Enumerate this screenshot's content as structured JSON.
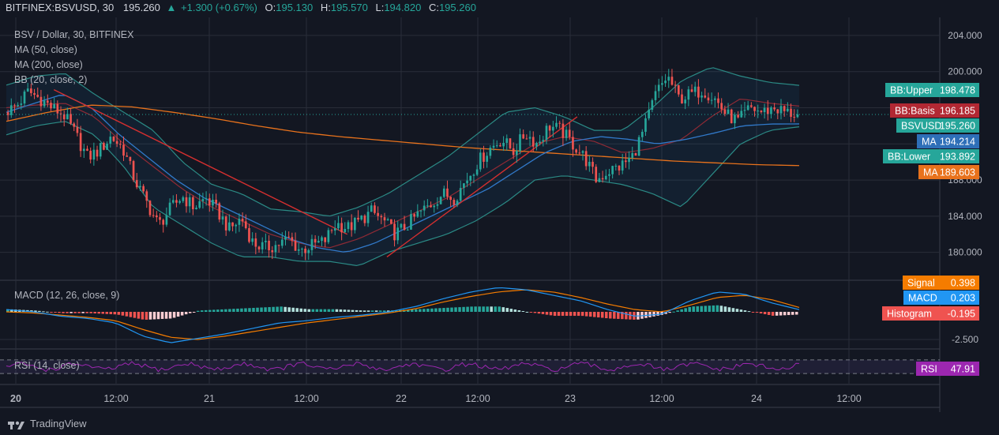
{
  "header": {
    "symbol": "BITFINEX:BSVUSD, 30",
    "last": "195.260",
    "arrow": "▲",
    "change": "+1.300 (+0.67%)",
    "o_label": "O:",
    "o_value": "195.130",
    "h_label": "H:",
    "h_value": "195.570",
    "l_label": "L:",
    "l_value": "194.820",
    "c_label": "C:",
    "c_value": "195.260"
  },
  "legend": {
    "title": "BSV / Dollar, 30, BITFINEX",
    "ma50": "MA (50, close)",
    "ma200": "MA (200, close)",
    "bb": "BB (20, close, 2)",
    "macd": "MACD (12, 26, close, 9)",
    "rsi": "RSI (14, close)"
  },
  "price_axis": [
    "204.000",
    "200.000",
    "188.000",
    "184.000",
    "180.000"
  ],
  "macd_axis": [
    "-2.500"
  ],
  "time_axis": [
    "20",
    "12:00",
    "21",
    "12:00",
    "22",
    "12:00",
    "23",
    "12:00",
    "24",
    "12:00"
  ],
  "tags": [
    {
      "label": "BB:Upper",
      "value": "198.478",
      "color": "#26a69a"
    },
    {
      "label": "BB:Basis",
      "value": "196.185",
      "color": "#b22833"
    },
    {
      "label": "BSVUSD",
      "value": "195.260",
      "color": "#26a69a"
    },
    {
      "label": "MA",
      "value": "194.214",
      "color": "#2e6fb8"
    },
    {
      "label": "BB:Lower",
      "value": "193.892",
      "color": "#26a69a"
    },
    {
      "label": "MA",
      "value": "189.603",
      "color": "#e8721c"
    },
    {
      "label": "Signal",
      "value": "0.398",
      "color": "#f57c00"
    },
    {
      "label": "MACD",
      "value": "0.203",
      "color": "#2196f3"
    },
    {
      "label": "Histogram",
      "value": "-0.195",
      "color": "#ef5350"
    },
    {
      "label": "RSI",
      "value": "47.91",
      "color": "#9c27b0"
    }
  ],
  "footer": {
    "brand": "TradingView"
  },
  "colors": {
    "up": "#26a69a",
    "down": "#ef5350",
    "bg": "#131722",
    "grid": "#2a2e39"
  },
  "chart_data": {
    "type": "candlestick",
    "title": "BSV / Dollar, 30, BITFINEX",
    "ylim": [
      177,
      206
    ],
    "x_ticks": [
      "20",
      "12:00",
      "21",
      "12:00",
      "22",
      "12:00",
      "23",
      "12:00",
      "24",
      "12:00"
    ],
    "close_anchors": [
      195.5,
      196.2,
      197.8,
      197.0,
      196.0,
      195.2,
      193.0,
      190.5,
      191.3,
      192.8,
      191.5,
      188.0,
      185.5,
      183.0,
      184.8,
      186.2,
      185.0,
      186.0,
      184.5,
      182.5,
      183.8,
      181.0,
      180.5,
      180.8,
      181.5,
      180.2,
      180.8,
      181.2,
      183.2,
      182.7,
      183.5,
      184.5,
      183.5,
      182.0,
      183.0,
      184.3,
      185.3,
      186.5,
      186.0,
      188.0,
      190.0,
      191.5,
      192.5,
      191.2,
      193.2,
      192.0,
      194.0,
      193.5,
      192.0,
      190.5,
      188.0,
      189.0,
      189.5,
      190.5,
      193.5,
      197.5,
      199.5,
      197.0,
      197.5,
      198.0,
      197.0,
      195.2,
      194.5,
      196.0,
      195.5,
      196.0,
      195.5,
      195.26
    ],
    "ma50_anchors": [
      195.5,
      196.5,
      197.5,
      196.0,
      193.0,
      190.5,
      188.0,
      186.0,
      184.5,
      183.0,
      181.5,
      180.5,
      180.0,
      181.0,
      182.5,
      184.0,
      185.5,
      187.0,
      189.0,
      191.0,
      192.3,
      192.8,
      192.5,
      192.0,
      192.5,
      193.2,
      194.0,
      194.2,
      194.214
    ],
    "ma200_anchors": [
      194.5,
      195.5,
      196.3,
      196.1,
      195.5,
      194.8,
      194.0,
      193.3,
      192.8,
      192.4,
      192.0,
      191.6,
      191.3,
      191.0,
      190.7,
      190.4,
      190.1,
      189.9,
      189.7,
      189.603
    ],
    "bb_basis_anchors": [
      196.0,
      196.3,
      196.5,
      195.0,
      192.0,
      189.5,
      187.0,
      185.0,
      183.5,
      182.0,
      181.0,
      180.5,
      181.5,
      183.0,
      184.5,
      186.0,
      188.0,
      190.0,
      192.0,
      192.8,
      192.3,
      191.0,
      191.5,
      192.5,
      195.0,
      197.0,
      196.5,
      196.185
    ],
    "bb_upper_anchors": [
      198.5,
      199.5,
      199.8,
      197.5,
      195.5,
      193.5,
      190.0,
      187.5,
      186.5,
      184.8,
      184.5,
      184.0,
      185.0,
      186.5,
      188.5,
      190.5,
      193.0,
      195.5,
      196.0,
      195.0,
      193.5,
      193.5,
      196.0,
      199.0,
      200.5,
      199.5,
      198.8,
      198.478
    ],
    "bb_lower_anchors": [
      193.0,
      194.0,
      194.5,
      193.0,
      189.5,
      185.0,
      183.0,
      181.0,
      179.5,
      179.5,
      179.0,
      179.0,
      178.5,
      180.0,
      181.0,
      182.0,
      183.5,
      185.5,
      188.0,
      188.5,
      188.0,
      187.5,
      186.5,
      185.0,
      188.5,
      192.0,
      193.5,
      193.892
    ],
    "red_trendlines": [
      [
        [
          0.06,
          198.0
        ],
        [
          0.43,
          182.0
        ]
      ],
      [
        [
          0.48,
          179.5
        ],
        [
          0.72,
          195.0
        ]
      ]
    ],
    "macd": {
      "params": "12, 26, close, 9",
      "macd": 0.203,
      "signal": 0.398,
      "histogram": -0.195,
      "macd_anchors": [
        0.2,
        0.0,
        -0.4,
        -0.6,
        -1.0,
        -2.2,
        -2.8,
        -2.4,
        -2.0,
        -1.5,
        -1.0,
        -0.8,
        -0.5,
        -0.3,
        0.0,
        0.5,
        1.2,
        1.8,
        2.2,
        2.0,
        1.5,
        1.0,
        0.2,
        -0.4,
        -0.2,
        1.0,
        1.8,
        1.6,
        0.8,
        0.203
      ],
      "signal_anchors": [
        0.0,
        -0.1,
        -0.3,
        -0.5,
        -0.8,
        -1.6,
        -2.3,
        -2.5,
        -2.2,
        -1.8,
        -1.4,
        -1.0,
        -0.7,
        -0.4,
        -0.1,
        0.3,
        0.9,
        1.4,
        1.8,
        2.0,
        1.8,
        1.3,
        0.7,
        0.2,
        0.0,
        0.6,
        1.3,
        1.5,
        1.1,
        0.398
      ]
    },
    "rsi": {
      "params": "14",
      "value": 47.91,
      "upper": 70,
      "lower": 30
    },
    "overlays": [
      "MA (50, close)",
      "MA (200, close)",
      "BB (20, close, 2)"
    ]
  }
}
